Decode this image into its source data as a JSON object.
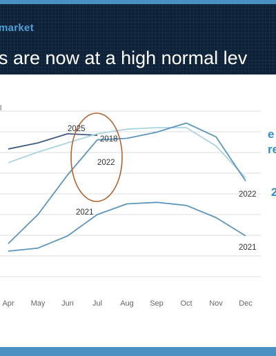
{
  "header": {
    "kicker": "market",
    "title": "s are now at a high normal lev"
  },
  "annotations": {
    "side_1": "e",
    "side_2": "re",
    "side_3": "2"
  },
  "chart_data": {
    "type": "line",
    "ylabel": "l",
    "categories": [
      "Apr",
      "May",
      "Jun",
      "Jul",
      "Aug",
      "Sep",
      "Oct",
      "Nov",
      "Dec"
    ],
    "ylim": [
      0,
      100
    ],
    "gridlines": true,
    "series": [
      {
        "name": "2025",
        "color": "#3d5a80",
        "x": [
          "Apr",
          "May",
          "Jun",
          "Jul"
        ],
        "values": [
          86,
          90,
          96,
          95
        ]
      },
      {
        "name": "2018",
        "color": "#a8d4e0",
        "x": [
          "Apr",
          "May",
          "Jun",
          "Jul",
          "Aug",
          "Sep",
          "Oct",
          "Nov",
          "Dec"
        ],
        "values": [
          77,
          84,
          90,
          96,
          99,
          100,
          100,
          88,
          67
        ]
      },
      {
        "name": "2022",
        "color": "#5b95bd",
        "x": [
          "Apr",
          "May",
          "Jun",
          "Jul",
          "Aug",
          "Sep",
          "Oct",
          "Nov",
          "Dec"
        ],
        "values": [
          24,
          43,
          69,
          92,
          93,
          97,
          103,
          94,
          65
        ]
      },
      {
        "name": "2021",
        "color": "#5b95bd",
        "x": [
          "Apr",
          "May",
          "Jun",
          "Jul",
          "Aug",
          "Sep",
          "Oct",
          "Nov",
          "Dec"
        ],
        "values": [
          19,
          21,
          29,
          43,
          50,
          51,
          49,
          41,
          29
        ]
      }
    ],
    "ellipse_color": "#b5602e"
  }
}
